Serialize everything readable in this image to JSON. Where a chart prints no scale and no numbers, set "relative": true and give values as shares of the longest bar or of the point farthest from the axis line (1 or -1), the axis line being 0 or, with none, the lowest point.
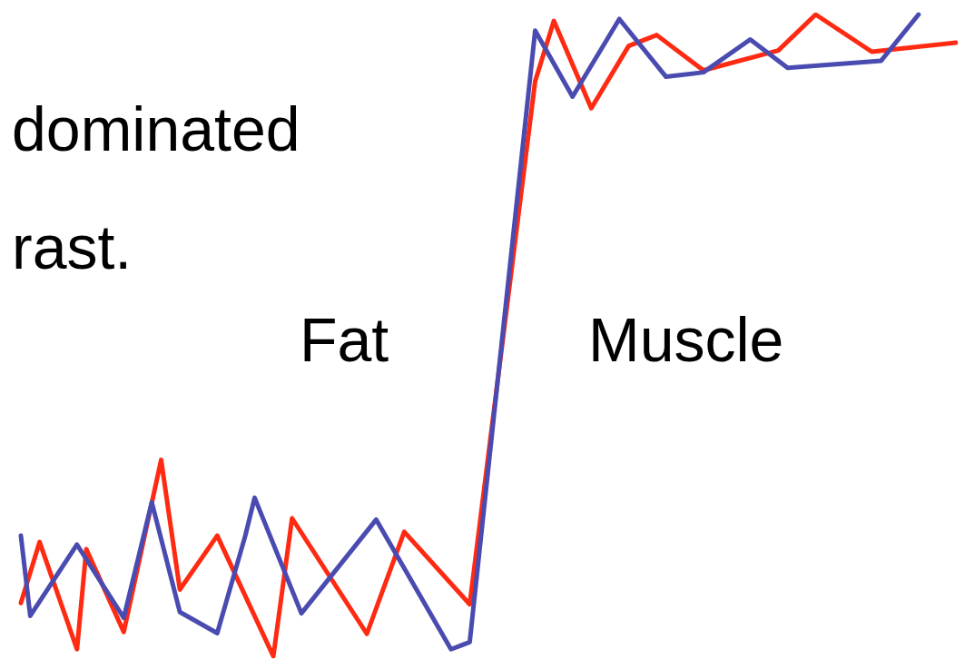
{
  "chart_data": {
    "type": "line",
    "relative": true,
    "marker": "none",
    "line_style": "solid",
    "annotations": [
      "dominated",
      "rast.",
      "Fat",
      "Muscle"
    ],
    "categories": [
      null,
      null,
      null,
      null,
      null,
      null,
      null,
      null,
      null,
      null,
      null,
      null,
      null,
      null,
      null,
      null,
      null,
      null,
      null,
      null,
      null,
      null,
      null,
      null,
      null,
      null,
      null,
      null,
      null,
      null,
      null,
      null,
      null,
      null,
      null,
      null,
      null,
      null,
      null,
      null,
      null,
      null,
      null,
      null,
      null,
      null,
      null,
      null,
      null,
      null,
      null,
      null,
      null,
      null,
      null,
      null,
      null,
      null,
      null,
      null,
      null,
      null,
      null,
      null,
      null,
      null,
      null,
      null,
      null,
      null,
      null,
      null,
      null,
      null,
      null,
      null,
      null,
      null,
      null,
      null,
      null,
      null,
      null,
      null,
      null,
      null,
      null,
      null,
      null,
      null,
      null,
      null,
      null,
      null,
      null,
      null,
      null,
      null,
      null,
      null,
      null
    ],
    "series": [
      {
        "color": "#ff2a12",
        "values": [
          0.083,
          null,
          0.178,
          null,
          null,
          null,
          0.011,
          0.167,
          null,
          null,
          null,
          0.038,
          null,
          null,
          null,
          0.306,
          null,
          0.104,
          null,
          null,
          null,
          0.188,
          null,
          null,
          null,
          null,
          null,
          0,
          null,
          0.215,
          null,
          null,
          null,
          null,
          null,
          null,
          null,
          0.035,
          null,
          null,
          null,
          0.194,
          null,
          null,
          null,
          null,
          null,
          null,
          0.081,
          null,
          null,
          null,
          null,
          null,
          null,
          0.896,
          null,
          0.99,
          null,
          null,
          null,
          0.854,
          null,
          null,
          null,
          0.951,
          null,
          null,
          0.968,
          null,
          null,
          null,
          null,
          0.913,
          null,
          null,
          null,
          null,
          null,
          null,
          null,
          0.944,
          null,
          null,
          null,
          1,
          null,
          null,
          null,
          null,
          null,
          0.942,
          null,
          null,
          null,
          null,
          null,
          null,
          null,
          null,
          0.956
        ]
      },
      {
        "color": "#4a4bb0",
        "values": [
          0.188,
          0.063,
          null,
          null,
          null,
          null,
          0.174,
          null,
          null,
          null,
          null,
          0.06,
          null,
          null,
          0.24,
          null,
          null,
          0.069,
          null,
          null,
          null,
          0.036,
          null,
          null,
          0.188,
          0.247,
          null,
          null,
          null,
          null,
          0.067,
          null,
          null,
          null,
          null,
          null,
          null,
          null,
          0.213,
          null,
          null,
          null,
          null,
          null,
          null,
          null,
          0.011,
          null,
          0.022,
          null,
          null,
          null,
          null,
          null,
          null,
          0.975,
          null,
          null,
          null,
          0.872,
          null,
          null,
          null,
          null,
          0.993,
          null,
          null,
          null,
          null,
          0.903,
          null,
          null,
          null,
          0.91,
          null,
          null,
          null,
          null,
          0.961,
          null,
          null,
          null,
          0.917,
          null,
          null,
          null,
          null,
          null,
          null,
          null,
          null,
          null,
          0.928,
          null,
          null,
          null,
          1,
          null,
          null,
          null,
          null
        ]
      }
    ]
  }
}
